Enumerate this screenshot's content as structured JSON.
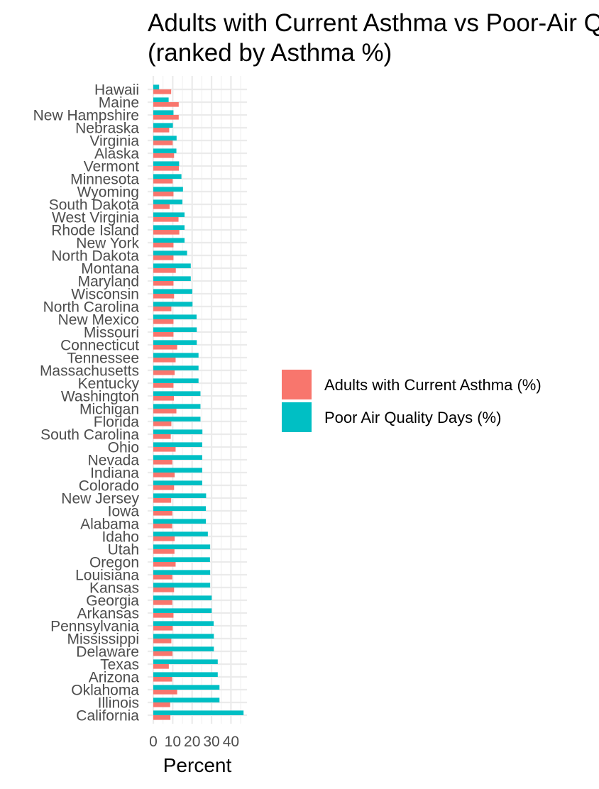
{
  "chart_data": {
    "type": "bar",
    "orientation": "horizontal",
    "title_lines": [
      "Adults with Current Asthma vs Poor-Air Quality Days",
      "(ranked by Asthma %)"
    ],
    "xlabel": "Percent",
    "ylabel": "",
    "xlim": [
      0,
      48
    ],
    "x_ticks": [
      0,
      10,
      20,
      30,
      40
    ],
    "x_tick_labels": [
      "0",
      "10",
      "20",
      "30",
      "40"
    ],
    "grid": true,
    "legend_position": "right",
    "categories": [
      "Hawaii",
      "Maine",
      "New Hampshire",
      "Nebraska",
      "Virginia",
      "Alaska",
      "Vermont",
      "Minnesota",
      "Wyoming",
      "South Dakota",
      "West Virginia",
      "Rhode Island",
      "New York",
      "North Dakota",
      "Montana",
      "Maryland",
      "Wisconsin",
      "North Carolina",
      "New Mexico",
      "Missouri",
      "Connecticut",
      "Tennessee",
      "Massachusetts",
      "Kentucky",
      "Washington",
      "Michigan",
      "Florida",
      "South Carolina",
      "Ohio",
      "Nevada",
      "Indiana",
      "Colorado",
      "New Jersey",
      "Iowa",
      "Alabama",
      "Idaho",
      "Utah",
      "Oregon",
      "Louisiana",
      "Kansas",
      "Georgia",
      "Arkansas",
      "Pennsylvania",
      "Mississippi",
      "Delaware",
      "Texas",
      "Arizona",
      "Oklahoma",
      "Illinois",
      "California"
    ],
    "series": [
      {
        "name": "Adults with Current Asthma (%)",
        "color": "#F8766D",
        "values": [
          9.2,
          13.1,
          13.1,
          8.2,
          10.0,
          10.7,
          13.2,
          10.0,
          10.4,
          8.4,
          13.0,
          13.4,
          10.4,
          10.4,
          11.6,
          10.4,
          10.7,
          9.3,
          10.4,
          10.4,
          12.3,
          11.5,
          11.0,
          10.4,
          10.6,
          11.9,
          9.3,
          9.0,
          11.5,
          9.8,
          11.0,
          10.7,
          9.2,
          9.8,
          9.7,
          11.0,
          10.9,
          11.5,
          9.8,
          10.7,
          9.8,
          10.4,
          10.0,
          9.3,
          9.9,
          8.0,
          9.7,
          12.3,
          8.7,
          8.8
        ]
      },
      {
        "name": "Poor Air Quality Days (%)",
        "color": "#00BFC4",
        "values": [
          3.0,
          7.9,
          10.4,
          10.1,
          12.0,
          11.9,
          13.3,
          14.5,
          15.3,
          15.0,
          16.1,
          16.1,
          16.1,
          17.4,
          19.3,
          19.3,
          20.1,
          20.2,
          22.3,
          22.4,
          22.4,
          23.3,
          23.3,
          23.3,
          24.3,
          24.3,
          24.3,
          25.3,
          25.2,
          25.2,
          25.2,
          25.2,
          27.2,
          27.1,
          27.1,
          28.1,
          29.3,
          29.2,
          29.3,
          29.3,
          30.1,
          30.1,
          31.1,
          31.2,
          31.2,
          33.2,
          33.2,
          34.1,
          34.1,
          46.5
        ]
      }
    ]
  }
}
